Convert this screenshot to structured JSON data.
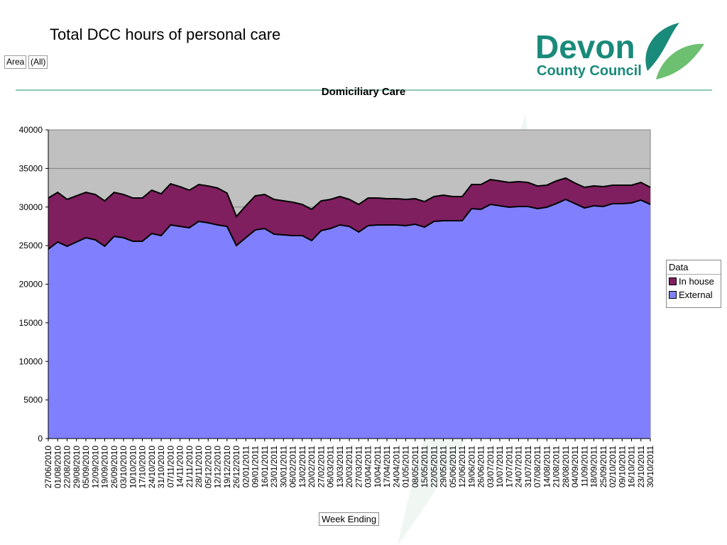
{
  "header": {
    "title": "Total DCC hours of personal care",
    "filter_label": "Area",
    "filter_value": "(All)"
  },
  "logo": {
    "line1": "Devon",
    "line2": "County Council"
  },
  "colors": {
    "plot_bg": "#c0c0c0",
    "external": "#8080ff",
    "in_house": "#7f1f5f",
    "brand": "#1a8a7a"
  },
  "chart_data": {
    "type": "area",
    "stacked": true,
    "title": "Domiciliary Care",
    "xlabel": "Week Ending",
    "ylabel": "",
    "ylim": [
      0,
      40000
    ],
    "yticks": [
      0,
      5000,
      10000,
      15000,
      20000,
      25000,
      30000,
      35000,
      40000
    ],
    "grid": true,
    "legend_title": "Data",
    "legend_position": "right",
    "categories": [
      "27/06/2010",
      "01/08/2010",
      "22/08/2010",
      "29/08/2010",
      "05/09/2010",
      "12/09/2010",
      "19/09/2010",
      "26/09/2010",
      "03/10/2010",
      "10/10/2010",
      "17/10/2010",
      "24/10/2010",
      "31/10/2010",
      "07/11/2010",
      "14/11/2010",
      "21/11/2010",
      "28/11/2010",
      "05/12/2010",
      "12/12/2010",
      "19/12/2010",
      "26/12/2010",
      "02/01/2011",
      "09/01/2011",
      "16/01/2011",
      "23/01/2011",
      "30/01/2011",
      "06/02/2011",
      "13/02/2011",
      "20/02/2011",
      "27/02/2011",
      "06/03/2011",
      "13/03/2011",
      "20/03/2011",
      "27/03/2011",
      "03/04/2011",
      "10/04/2011",
      "17/04/2011",
      "24/04/2011",
      "01/05/2011",
      "08/05/2011",
      "15/05/2011",
      "22/05/2011",
      "29/05/2011",
      "05/06/2011",
      "12/06/2011",
      "19/06/2011",
      "26/06/2011",
      "03/07/2011",
      "10/07/2011",
      "17/07/2011",
      "24/07/2011",
      "31/07/2011",
      "07/08/2011",
      "14/08/2011",
      "21/08/2011",
      "28/08/2011",
      "04/09/2011",
      "11/09/2011",
      "18/09/2011",
      "25/09/2011",
      "02/10/2011",
      "09/10/2011",
      "16/10/2011",
      "23/10/2011",
      "30/10/2011"
    ],
    "series": [
      {
        "name": "External",
        "values": [
          24550,
          25470,
          24920,
          25470,
          26020,
          25750,
          24920,
          26200,
          26020,
          25560,
          25560,
          26570,
          26300,
          27680,
          27490,
          27310,
          28140,
          27950,
          27680,
          27490,
          25010,
          26020,
          27030,
          27220,
          26480,
          26390,
          26300,
          26300,
          25650,
          26940,
          27220,
          27680,
          27490,
          26760,
          27590,
          27680,
          27680,
          27680,
          27590,
          27770,
          27400,
          28140,
          28230,
          28230,
          28230,
          29790,
          29700,
          30340,
          30160,
          29980,
          30070,
          30070,
          29790,
          29980,
          30440,
          30990,
          30440,
          29880,
          30160,
          30070,
          30440,
          30440,
          30530,
          30900,
          30340
        ]
      },
      {
        "name": "In house",
        "values": [
          6620,
          6430,
          6070,
          5980,
          5880,
          5880,
          5880,
          5700,
          5610,
          5610,
          5610,
          5610,
          5420,
          5330,
          5150,
          4870,
          4780,
          4780,
          4780,
          4320,
          3770,
          4140,
          4420,
          4410,
          4510,
          4410,
          4320,
          4040,
          4050,
          3860,
          3770,
          3680,
          3500,
          3580,
          3580,
          3490,
          3400,
          3400,
          3400,
          3310,
          3310,
          3220,
          3310,
          3130,
          3130,
          3130,
          3220,
          3220,
          3220,
          3210,
          3220,
          3120,
          2940,
          2850,
          2940,
          2760,
          2660,
          2670,
          2570,
          2570,
          2390,
          2390,
          2300,
          2290,
          2210
        ]
      }
    ]
  }
}
